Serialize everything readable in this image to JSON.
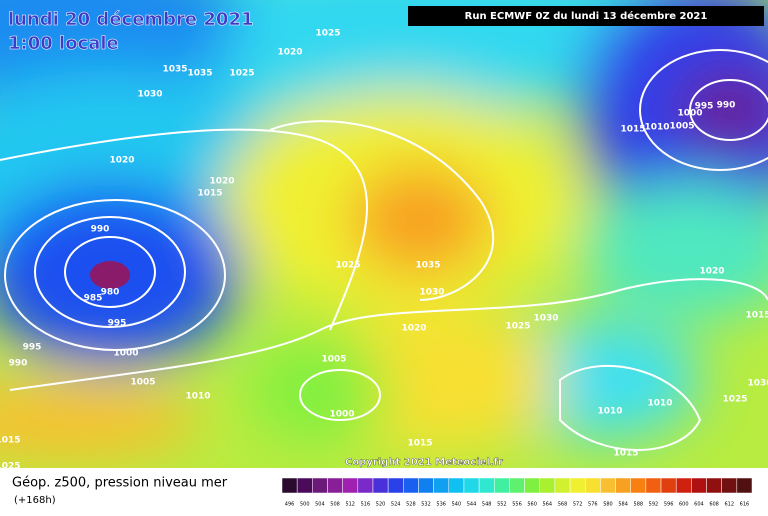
{
  "header": {
    "date": "lundi 20 décembre 2021",
    "time": "1:00 locale",
    "run": "Run ECMWF 0Z du lundi 13 décembre 2021"
  },
  "copyright": "Copyright 2021 Meteociel.fr",
  "footer": {
    "title": "Géop. z500, pression niveau mer",
    "lead": "(+168h)"
  },
  "isobar_labels": [
    1025,
    1020,
    1035,
    1035,
    1025,
    1030,
    1020,
    1015,
    1020,
    990,
    985,
    980,
    995,
    995,
    990,
    1000,
    1005,
    1010,
    1025,
    1035,
    1030,
    1020,
    1025,
    1030,
    1005,
    1000,
    1015,
    1015,
    1010,
    1010,
    1025,
    1020,
    1015,
    1010,
    1005,
    1000,
    995,
    990,
    1015,
    1030,
    1015,
    1025
  ],
  "colorbar": {
    "labels": [
      496,
      500,
      504,
      508,
      512,
      516,
      520,
      524,
      528,
      532,
      536,
      540,
      544,
      548,
      552,
      556,
      560,
      564,
      568,
      572,
      576,
      580,
      584,
      588,
      592,
      596,
      600,
      604,
      608,
      612,
      616
    ],
    "colors": [
      "#2a0a2e",
      "#4b0a5a",
      "#6c1a7a",
      "#8a1e99",
      "#a020b0",
      "#7a2ac8",
      "#4a30d8",
      "#2a40e8",
      "#1a60f0",
      "#1080f0",
      "#10a0f0",
      "#10c0f0",
      "#20d8e8",
      "#30e8d0",
      "#40f0a0",
      "#60f070",
      "#80f040",
      "#a8f030",
      "#d0f030",
      "#f0f030",
      "#f8e030",
      "#f8c030",
      "#f8a020",
      "#f88010",
      "#f06010",
      "#e04010",
      "#d02010",
      "#b01010",
      "#901010",
      "#701010",
      "#501010"
    ]
  }
}
